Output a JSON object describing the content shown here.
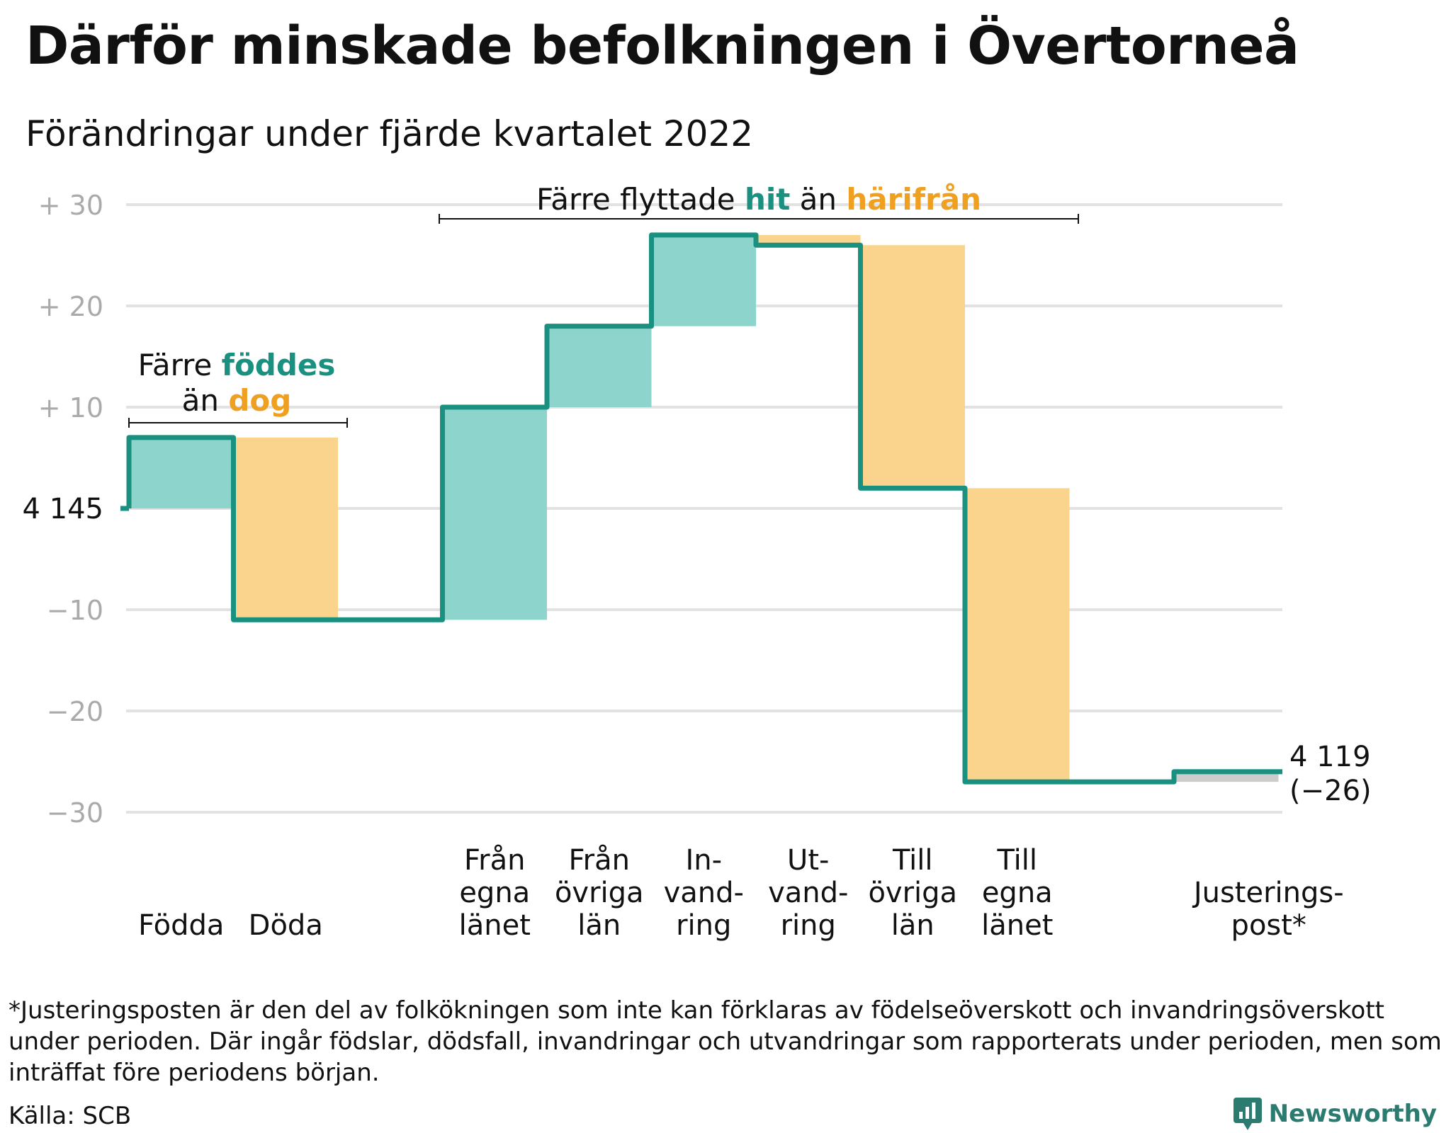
{
  "title": "Därför minskade befolkningen i Övertorneå",
  "subtitle": "Förändringar under fjärde kvartalet 2022",
  "chart_data": {
    "type": "waterfall",
    "start_value": 4145,
    "start_label": "4 145",
    "end_value": 4119,
    "end_label": "4 119",
    "end_change_label": "(−26)",
    "ylim": [
      -30,
      30
    ],
    "yticks": [
      {
        "value": 30,
        "label": "+ 30"
      },
      {
        "value": 20,
        "label": "+ 20"
      },
      {
        "value": 10,
        "label": "+ 10"
      },
      {
        "value": -10,
        "label": "−10"
      },
      {
        "value": -20,
        "label": "−20"
      },
      {
        "value": -30,
        "label": "−30"
      }
    ],
    "steps": [
      {
        "lines": [
          "Födda"
        ],
        "delta": 7,
        "kind": "in"
      },
      {
        "lines": [
          "Döda"
        ],
        "delta": -18,
        "kind": "out"
      },
      {
        "lines": [],
        "delta": 0,
        "kind": "gap"
      },
      {
        "lines": [
          "Från",
          "egna",
          "länet"
        ],
        "delta": 21,
        "kind": "in"
      },
      {
        "lines": [
          "Från",
          "övriga",
          "län"
        ],
        "delta": 8,
        "kind": "in"
      },
      {
        "lines": [
          "In-",
          "vand-",
          "ring"
        ],
        "delta": 9,
        "kind": "in"
      },
      {
        "lines": [
          "Ut-",
          "vand-",
          "ring"
        ],
        "delta": -1,
        "kind": "out"
      },
      {
        "lines": [
          "Till",
          "övriga",
          "län"
        ],
        "delta": -24,
        "kind": "out"
      },
      {
        "lines": [
          "Till",
          "egna",
          "länet"
        ],
        "delta": -29,
        "kind": "out"
      },
      {
        "lines": [],
        "delta": 0,
        "kind": "gap"
      },
      {
        "lines": [
          "Justerings-",
          "post*"
        ],
        "delta": 1,
        "kind": "adjust"
      }
    ],
    "annotations": {
      "births": {
        "line1_a": "Färre ",
        "line1_b": "föddes",
        "line2_a": "än ",
        "line2_b": "dog"
      },
      "moves": {
        "a": "Färre flyttade ",
        "b": "hit",
        "c": " än ",
        "d": "härifrån"
      }
    },
    "colors": {
      "in_fill": "#8dd5cc",
      "out_fill": "#fad48c",
      "adjust_fill": "#cccccc",
      "line": "#1a9080",
      "teal_text": "#1a9080",
      "orange_text": "#f0a020",
      "grid": "#e2e2e2",
      "tick_text": "#aaaaaa"
    }
  },
  "footnote": "*Justeringsposten är den del av folkökningen som inte kan förklaras av födelseöverskott och invandringsöverskott under perioden. Där ingår födslar, dödsfall, invandringar och utvandringar som rapporterats under perioden, men som inträffat före periodens början.",
  "source": "Källa: SCB",
  "brand": {
    "name": "Newsworthy",
    "icon": "newsworthy-logo-icon"
  }
}
